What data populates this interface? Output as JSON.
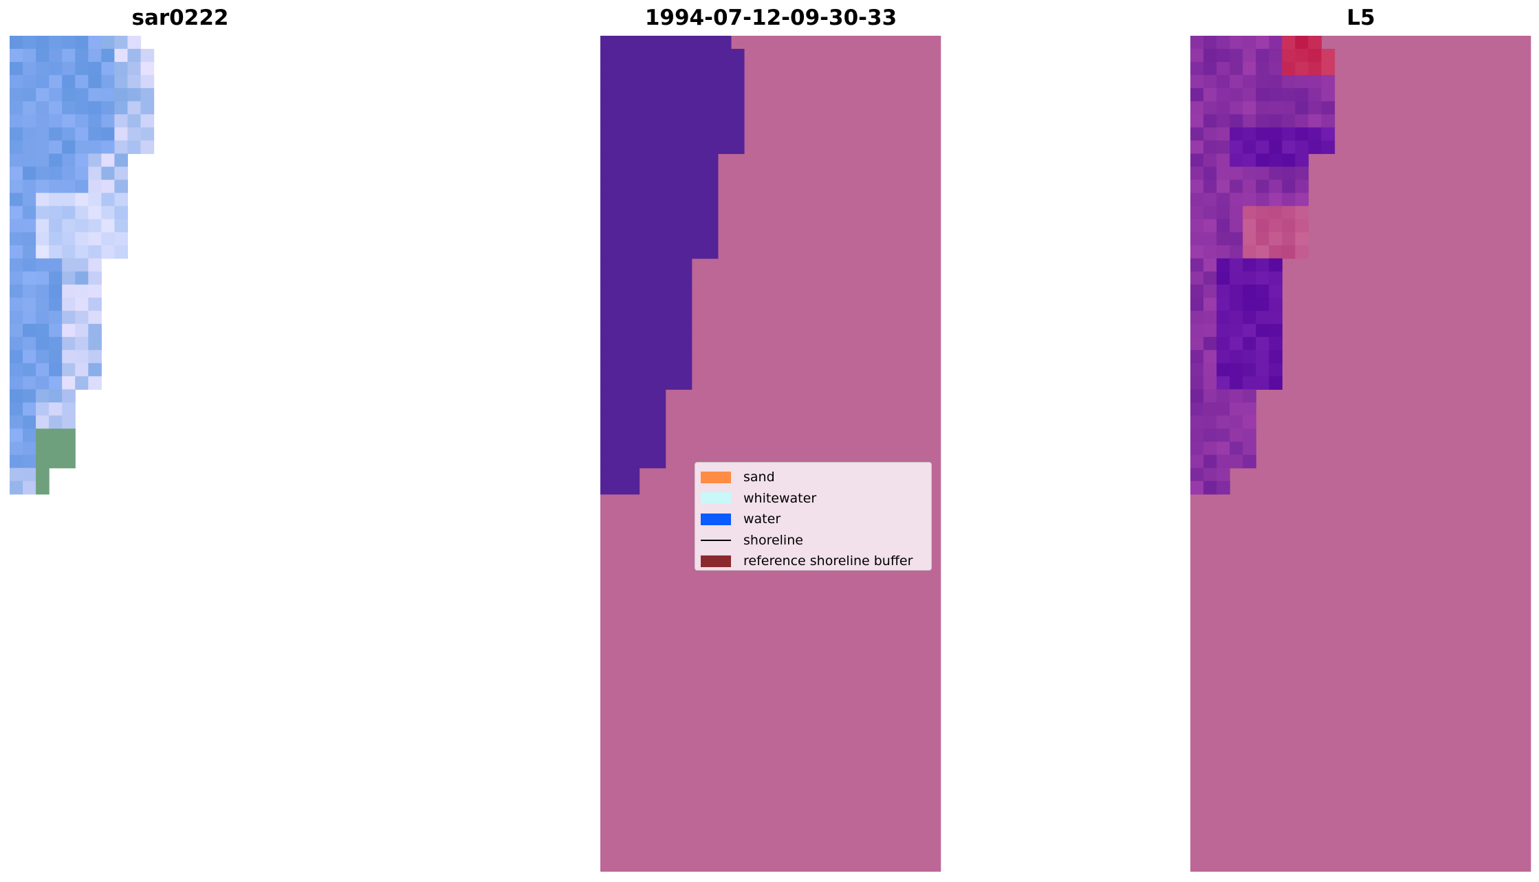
{
  "panels": [
    {
      "title": "sar0222"
    },
    {
      "title": "1994-07-12-09-30-33"
    },
    {
      "title": "L5"
    }
  ],
  "legend": {
    "items": [
      {
        "label": "sand",
        "color": "#ff8c45",
        "type": "patch"
      },
      {
        "label": "whitewater",
        "color": "#c8f8f8",
        "type": "patch"
      },
      {
        "label": "water",
        "color": "#0a5cff",
        "type": "patch"
      },
      {
        "label": "shoreline",
        "color": "#000000",
        "type": "line"
      },
      {
        "label": "reference shoreline buffer",
        "color": "#8b2a2e",
        "type": "patch"
      }
    ]
  },
  "colors": {
    "background_overlay": "#bd6796",
    "water_class_overlay": "#552398",
    "rgb_water": "#72a2e4",
    "index_high": "#c40038",
    "index_low": "#5a00a8"
  }
}
